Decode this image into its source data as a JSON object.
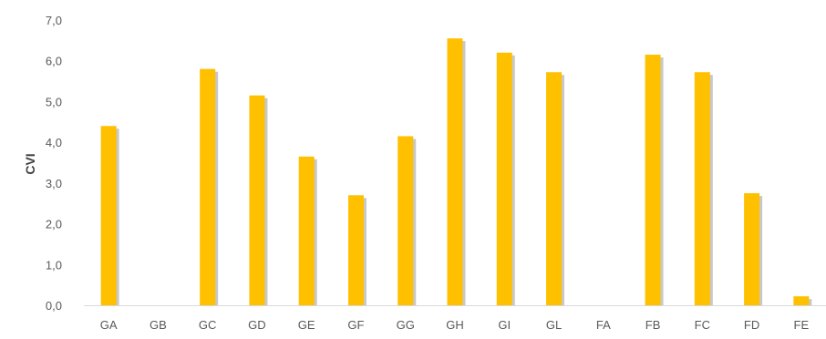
{
  "chart_data": {
    "type": "bar",
    "title": "",
    "xlabel": "",
    "ylabel": "CVI",
    "categories": [
      "GA",
      "GB",
      "GC",
      "GD",
      "GE",
      "GF",
      "GG",
      "GH",
      "GI",
      "GL",
      "FA",
      "FB",
      "FC",
      "FD",
      "FE"
    ],
    "values": [
      4.4,
      0,
      5.8,
      5.15,
      3.65,
      2.7,
      4.15,
      6.55,
      6.2,
      5.72,
      0,
      6.15,
      5.72,
      2.75,
      0.22
    ],
    "ylim": [
      0,
      7
    ],
    "yticks": [
      "0,0",
      "1,0",
      "2,0",
      "3,0",
      "4,0",
      "5,0",
      "6,0",
      "7,0"
    ],
    "grid": false,
    "legend": "none",
    "colors": {
      "bar": "#FFC000",
      "bar_shadow": "#C8C8C8",
      "axis": "#D9D9D9",
      "text": "#595959"
    }
  }
}
